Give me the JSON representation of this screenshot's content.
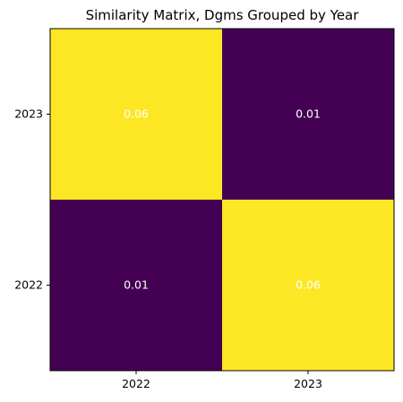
{
  "chart_data": {
    "type": "heatmap",
    "title": "Similarity Matrix, Dgms Grouped by Year",
    "xlabel": "",
    "ylabel": "",
    "x_categories": [
      "2022",
      "2023"
    ],
    "y_categories": [
      "2023",
      "2022"
    ],
    "values": [
      [
        0.06,
        0.01
      ],
      [
        0.01,
        0.06
      ]
    ],
    "value_labels": [
      [
        "0.06",
        "0.01"
      ],
      [
        "0.01",
        "0.06"
      ]
    ],
    "colormap": {
      "low": "#440154",
      "high": "#fde725"
    },
    "cell_text_color": "#ffffff",
    "grid": false,
    "legend": "none"
  }
}
